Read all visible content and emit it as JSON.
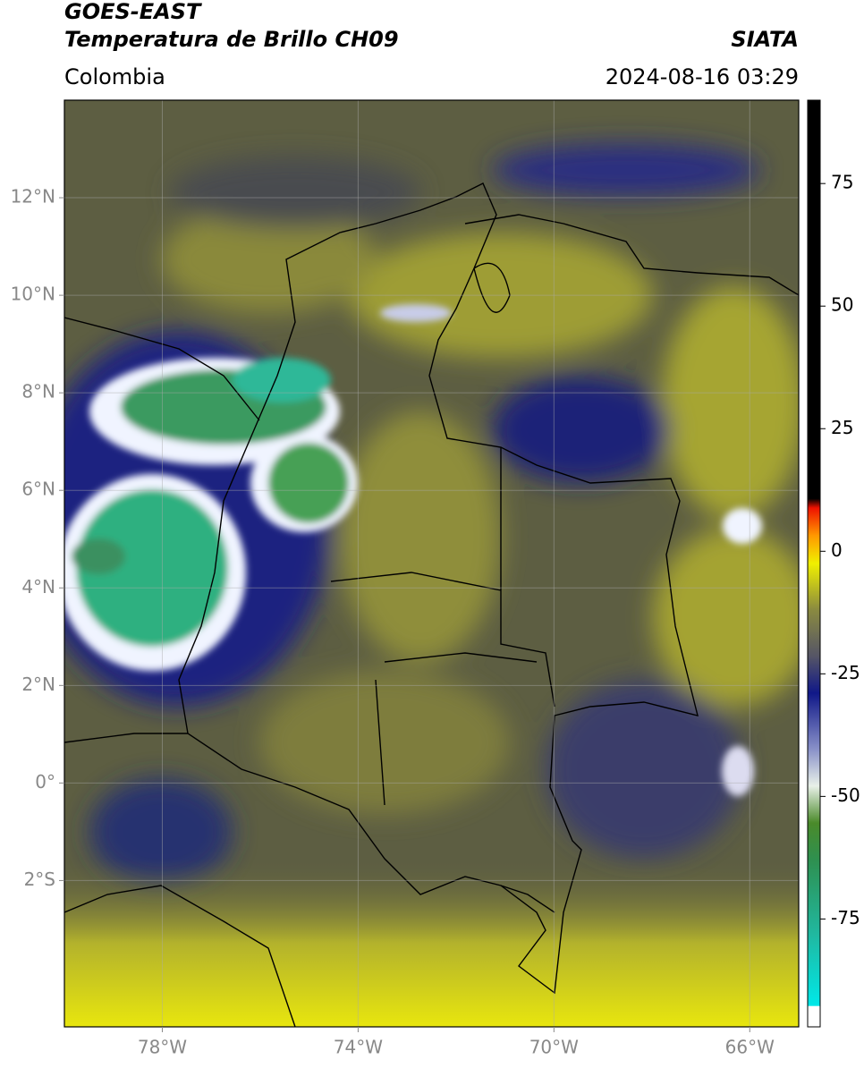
{
  "header": {
    "title": "GOES-EAST",
    "subtitle": "Temperatura de Brillo CH09",
    "source": "SIATA",
    "region": "Colombia",
    "datetime": "2024-08-16 03:29"
  },
  "map": {
    "lon_range": [
      -80,
      -65
    ],
    "lat_range": [
      -5,
      14
    ],
    "grid": true,
    "lon_ticks": [
      {
        "value": -78,
        "label": "78°W"
      },
      {
        "value": -74,
        "label": "74°W"
      },
      {
        "value": -70,
        "label": "70°W"
      },
      {
        "value": -66,
        "label": "66°W"
      }
    ],
    "lat_ticks": [
      {
        "value": 12,
        "label": "12°N"
      },
      {
        "value": 10,
        "label": "10°N"
      },
      {
        "value": 8,
        "label": "8°N"
      },
      {
        "value": 6,
        "label": "6°N"
      },
      {
        "value": 4,
        "label": "4°N"
      },
      {
        "value": 2,
        "label": "2°N"
      },
      {
        "value": 0,
        "label": "0°"
      },
      {
        "value": -2,
        "label": "2°S"
      }
    ]
  },
  "colorbar": {
    "range": [
      -97,
      92
    ],
    "ticks": [
      75,
      50,
      25,
      0,
      -25,
      -50,
      -75
    ]
  }
}
